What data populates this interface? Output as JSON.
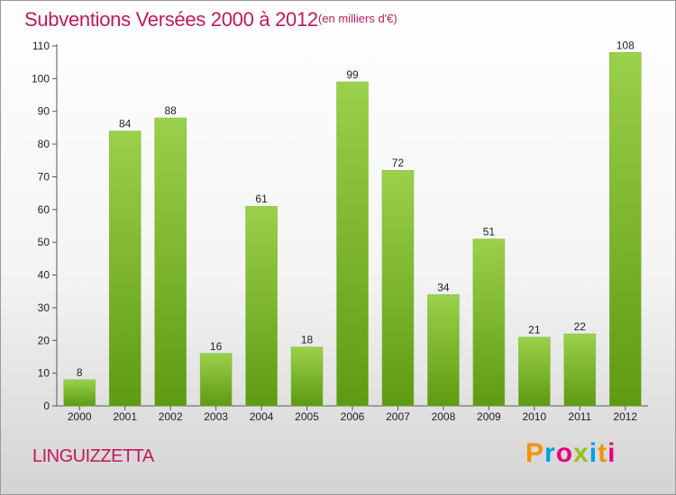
{
  "header": {
    "title": "Subventions Versées 2000 à 2012",
    "subtitle": "(en milliers d'€)"
  },
  "footer": {
    "commune": "LINGUIZZETTA",
    "logo_letters": [
      "P",
      "r",
      "o",
      "x",
      "i",
      "t",
      "i"
    ],
    "logo_colors": [
      "#f39200",
      "#009fe3",
      "#e6007e",
      "#95c11f",
      "#009fe3",
      "#f39200",
      "#e6007e"
    ]
  },
  "colors": {
    "bar_top": "#9bd04a",
    "bar_bottom": "#5e9a12",
    "accent": "#c2185b"
  },
  "chart_data": {
    "type": "bar",
    "title": "Subventions Versées 2000 à 2012",
    "subtitle": "(en milliers d'€)",
    "categories": [
      "2000",
      "2001",
      "2002",
      "2003",
      "2004",
      "2005",
      "2006",
      "2007",
      "2008",
      "2009",
      "2010",
      "2011",
      "2012"
    ],
    "values": [
      8,
      84,
      88,
      16,
      61,
      18,
      99,
      72,
      34,
      51,
      21,
      22,
      108
    ],
    "ylim": [
      0,
      110
    ],
    "yticks": [
      0,
      10,
      20,
      30,
      40,
      50,
      60,
      70,
      80,
      90,
      100,
      110
    ],
    "grid": false,
    "data_labels": true
  }
}
